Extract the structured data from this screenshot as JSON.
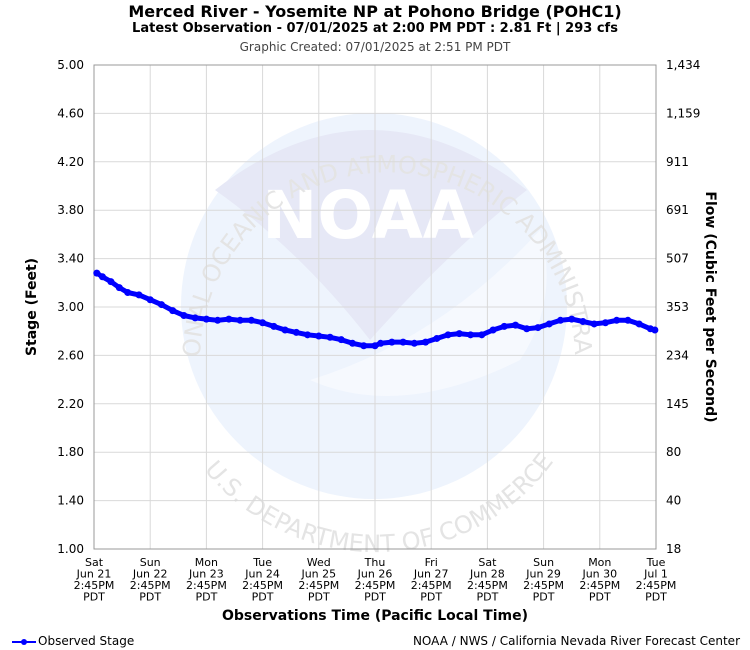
{
  "chart_data": {
    "type": "line",
    "title": "Merced River - Yosemite NP at Pohono Bridge (POHC1)",
    "subtitle": "Latest Observation - 07/01/2025 at 2:00 PM PDT : 2.81 Ft | 293 cfs",
    "created": "Graphic Created: 07/01/2025 at 2:51 PM PDT",
    "xlabel": "Observations Time (Pacific Local Time)",
    "ylabel": "Stage (Feet)",
    "y2label": "Flow (Cubic Feet per Second)",
    "ylim": [
      1.0,
      5.0
    ],
    "xlim": [
      0,
      10
    ],
    "yticks": [
      "1.00",
      "1.40",
      "1.80",
      "2.20",
      "2.60",
      "3.00",
      "3.40",
      "3.80",
      "4.20",
      "4.60",
      "5.00"
    ],
    "y2ticks": [
      "18",
      "40",
      "80",
      "145",
      "234",
      "353",
      "507",
      "691",
      "911",
      "1,159",
      "1,434"
    ],
    "xticks": [
      [
        "Sat",
        "Jun 21",
        "2:45PM",
        "PDT"
      ],
      [
        "Sun",
        "Jun 22",
        "2:45PM",
        "PDT"
      ],
      [
        "Mon",
        "Jun 23",
        "2:45PM",
        "PDT"
      ],
      [
        "Tue",
        "Jun 24",
        "2:45PM",
        "PDT"
      ],
      [
        "Wed",
        "Jun 25",
        "2:45PM",
        "PDT"
      ],
      [
        "Thu",
        "Jun 26",
        "2:45PM",
        "PDT"
      ],
      [
        "Fri",
        "Jun 27",
        "2:45PM",
        "PDT"
      ],
      [
        "Sat",
        "Jun 28",
        "2:45PM",
        "PDT"
      ],
      [
        "Sun",
        "Jun 29",
        "2:45PM",
        "PDT"
      ],
      [
        "Mon",
        "Jun 30",
        "2:45PM",
        "PDT"
      ],
      [
        "Tue",
        "Jul 1",
        "2:45PM",
        "PDT"
      ]
    ],
    "grid": true,
    "series": [
      {
        "name": "Observed Stage",
        "color": "#0000ff",
        "x": [
          0.05,
          0.15,
          0.3,
          0.45,
          0.6,
          0.8,
          1.0,
          1.2,
          1.4,
          1.6,
          1.8,
          2.0,
          2.2,
          2.4,
          2.6,
          2.8,
          3.0,
          3.2,
          3.4,
          3.6,
          3.8,
          4.0,
          4.2,
          4.4,
          4.6,
          4.8,
          5.0,
          5.1,
          5.3,
          5.5,
          5.7,
          5.9,
          6.1,
          6.3,
          6.5,
          6.7,
          6.9,
          7.1,
          7.3,
          7.5,
          7.7,
          7.9,
          8.1,
          8.3,
          8.5,
          8.7,
          8.9,
          9.1,
          9.3,
          9.5,
          9.7,
          9.9,
          9.98
        ],
        "y": [
          3.28,
          3.25,
          3.21,
          3.16,
          3.12,
          3.1,
          3.06,
          3.02,
          2.97,
          2.93,
          2.91,
          2.9,
          2.89,
          2.9,
          2.89,
          2.89,
          2.87,
          2.84,
          2.81,
          2.79,
          2.77,
          2.76,
          2.75,
          2.73,
          2.7,
          2.68,
          2.68,
          2.7,
          2.71,
          2.71,
          2.7,
          2.71,
          2.74,
          2.77,
          2.78,
          2.77,
          2.77,
          2.81,
          2.84,
          2.85,
          2.82,
          2.83,
          2.86,
          2.89,
          2.9,
          2.88,
          2.86,
          2.87,
          2.89,
          2.89,
          2.86,
          2.82,
          2.81
        ]
      }
    ]
  },
  "legend": {
    "label": "Observed Stage"
  },
  "credit": "NOAA / NWS / California Nevada River Forecast Center",
  "watermark": {
    "logo_text": "NOAA",
    "top_text": "NATIONAL OCEANIC AND ATMOSPHERIC ADMINISTRATION",
    "bottom_text": "U.S. DEPARTMENT OF COMMERCE"
  }
}
